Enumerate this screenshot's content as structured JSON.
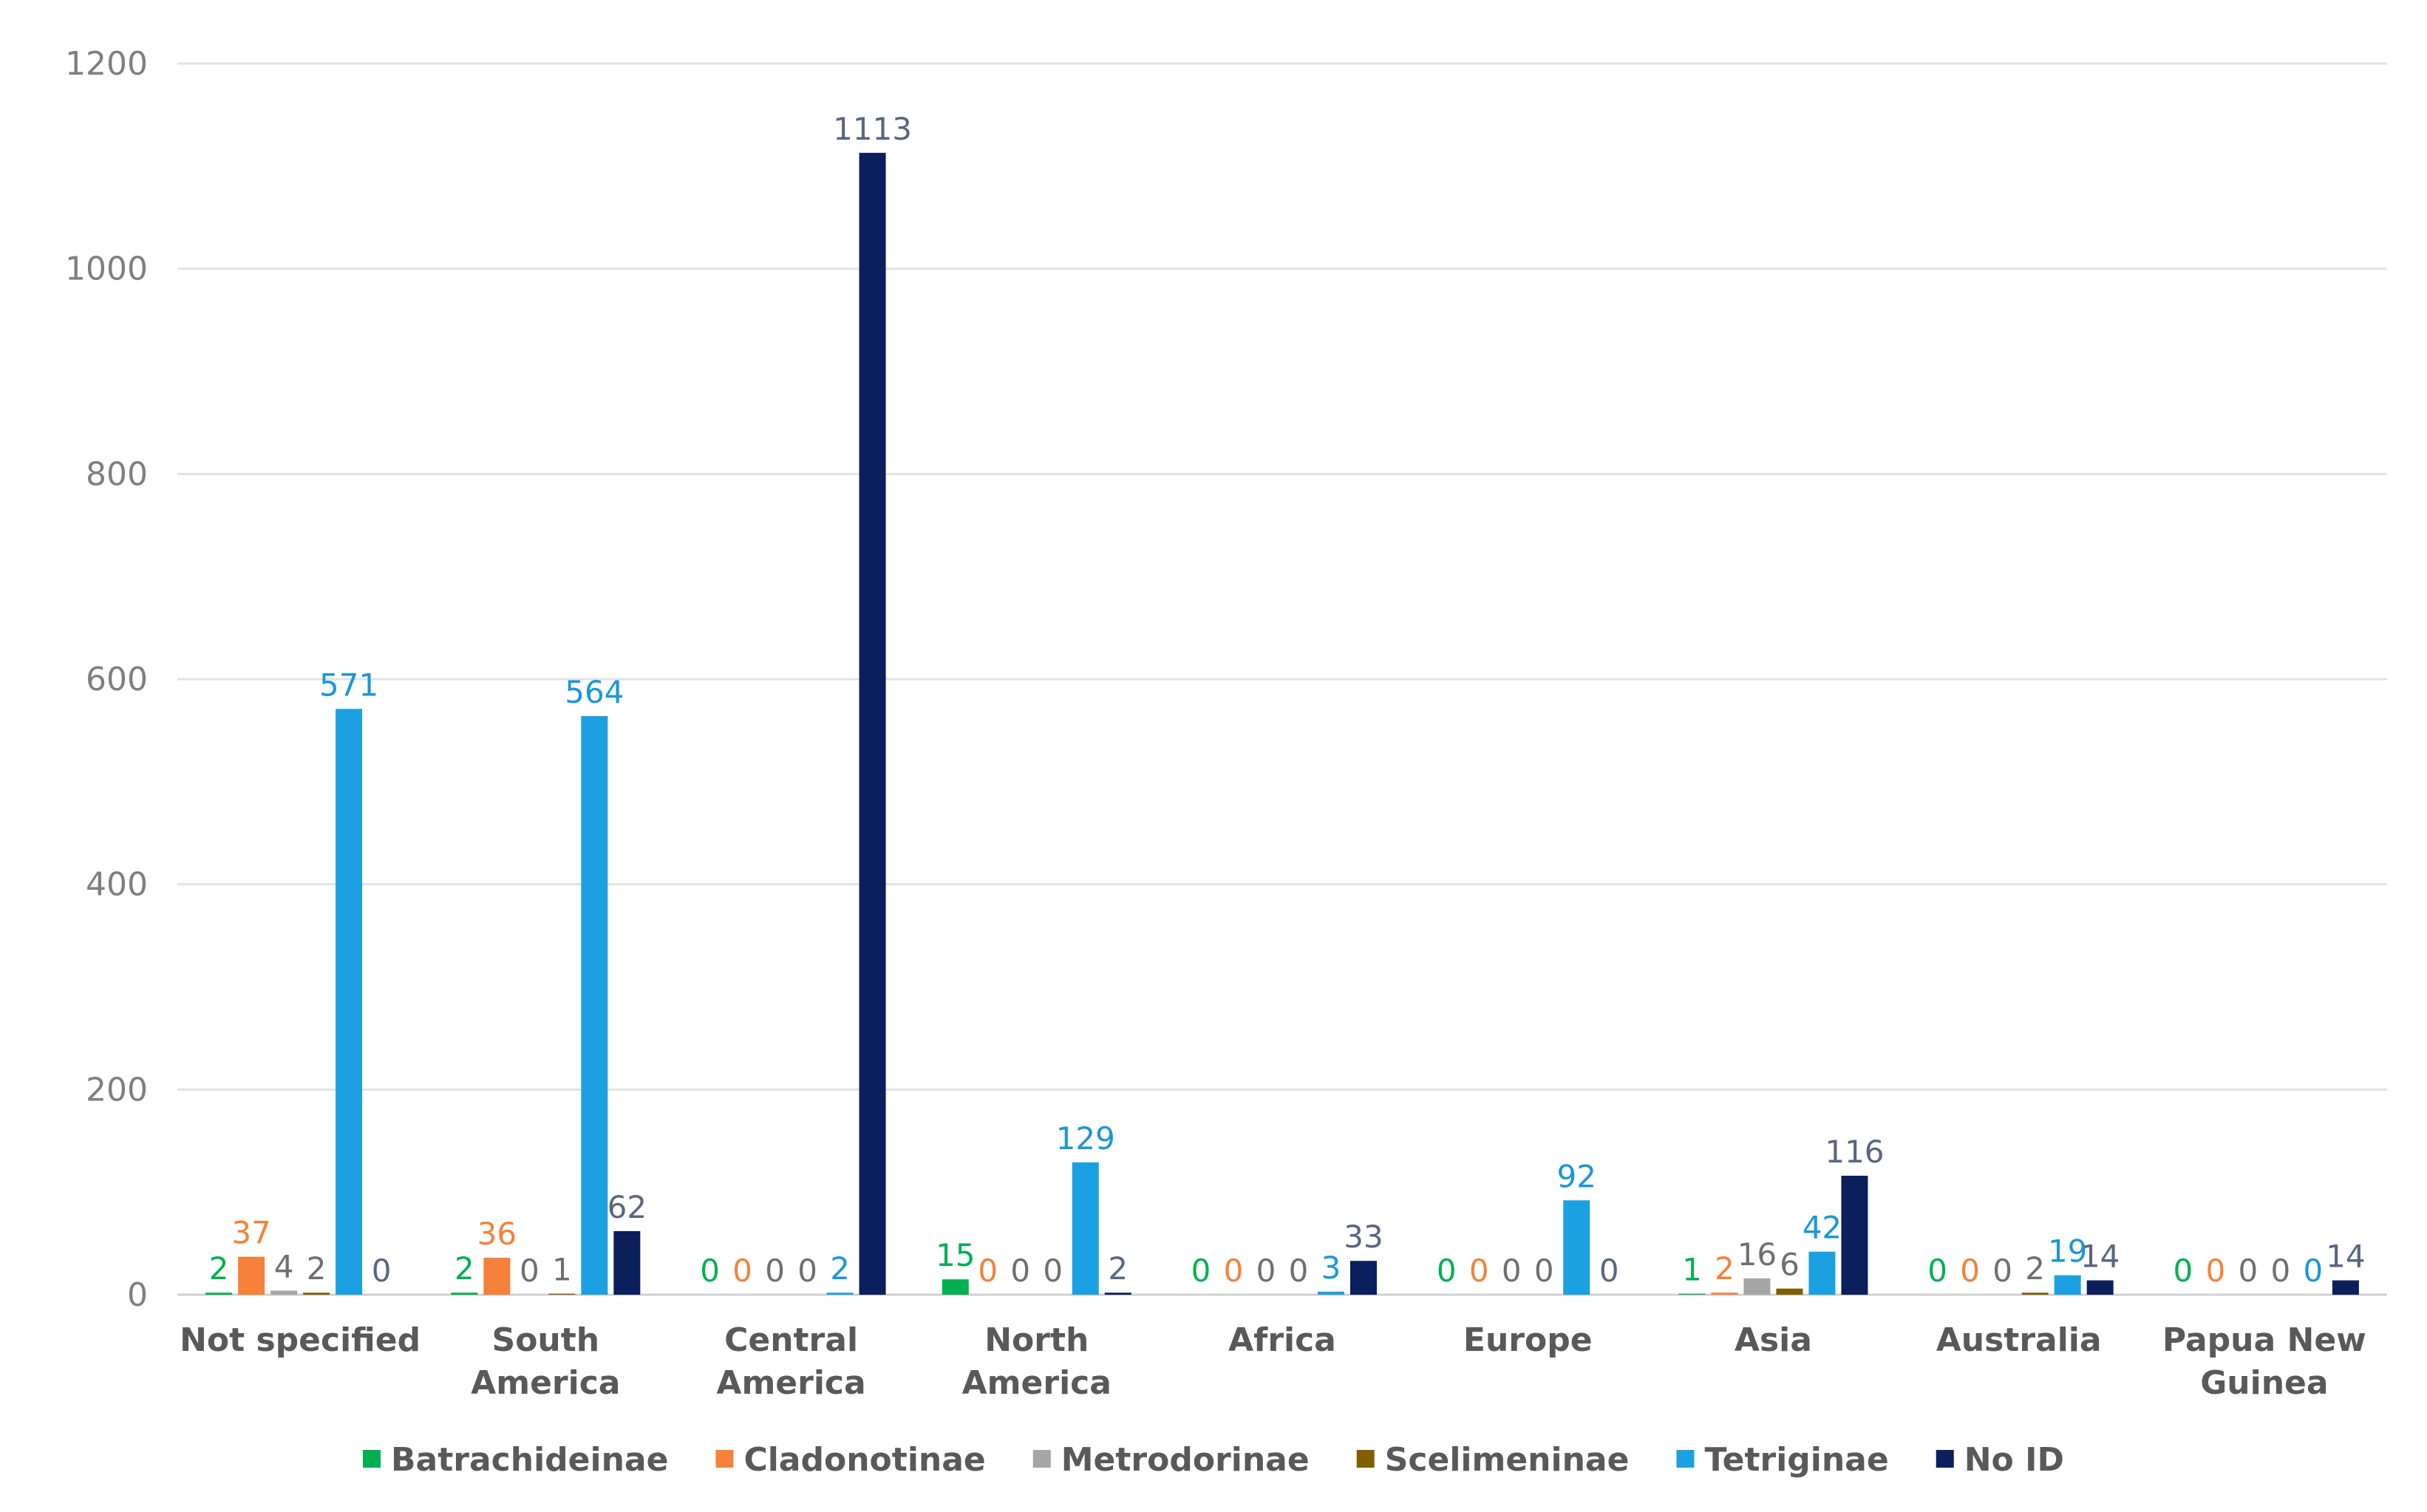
{
  "chart_data": {
    "type": "bar",
    "title": "",
    "xlabel": "",
    "ylabel": "",
    "ylim": [
      0,
      1200
    ],
    "yticks": [
      0,
      200,
      400,
      600,
      800,
      1000,
      1200
    ],
    "grid": true,
    "legend_position": "bottom",
    "categories": [
      [
        "Not specified"
      ],
      [
        "South",
        "America"
      ],
      [
        "Central",
        "America"
      ],
      [
        "North",
        "America"
      ],
      [
        "Africa"
      ],
      [
        "Europe"
      ],
      [
        "Asia"
      ],
      [
        "Australia"
      ],
      [
        "Papua New",
        "Guinea"
      ]
    ],
    "series": [
      {
        "name": "Batrachideinae",
        "color": "#00b050",
        "values": [
          2,
          2,
          0,
          15,
          0,
          0,
          1,
          0,
          0
        ]
      },
      {
        "name": "Cladonotinae",
        "color": "#f5813a",
        "values": [
          37,
          36,
          0,
          0,
          0,
          0,
          2,
          0,
          0
        ]
      },
      {
        "name": "Metrodorinae",
        "color": "#a6a6a6",
        "values": [
          4,
          0,
          0,
          0,
          0,
          0,
          16,
          0,
          0
        ]
      },
      {
        "name": "Scelimeninae",
        "color": "#7f5f00",
        "values": [
          2,
          1,
          0,
          0,
          0,
          0,
          6,
          2,
          0
        ]
      },
      {
        "name": "Tetriginae",
        "color": "#1ba1e2",
        "values": [
          571,
          564,
          2,
          129,
          3,
          92,
          42,
          19,
          0
        ]
      },
      {
        "name": "No ID",
        "color": "#0a1f5c",
        "values": [
          0,
          62,
          1113,
          2,
          33,
          0,
          116,
          14,
          14
        ]
      }
    ],
    "label_colors": [
      "#00b050",
      "#f5813a",
      "#6f6f6f",
      "#6f6f6f",
      "#1b97d8",
      "#5a6682"
    ]
  }
}
